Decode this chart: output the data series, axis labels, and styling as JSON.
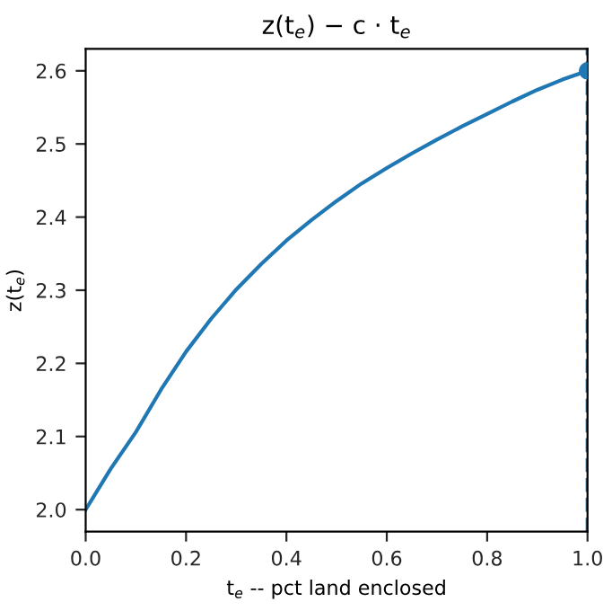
{
  "chart_data": {
    "type": "line",
    "title": "z(t$_{e}$) − c · t$_{e}$",
    "xlabel": "t$_{e}$ -- pct land enclosed",
    "ylabel": "z(t$_{e}$)",
    "series": [
      {
        "color": "#1f77b4",
        "x": [
          0,
          0.05,
          0.1,
          0.15,
          0.2,
          0.25,
          0.3,
          0.35,
          0.4,
          0.45,
          0.5,
          0.55,
          0.6,
          0.65,
          0.7,
          0.75,
          0.8,
          0.85,
          0.9,
          0.95,
          1.0
        ],
        "values": [
          2.0,
          2.056,
          2.106,
          2.164,
          2.216,
          2.261,
          2.301,
          2.336,
          2.368,
          2.396,
          2.422,
          2.446,
          2.467,
          2.487,
          2.506,
          2.524,
          2.541,
          2.558,
          2.574,
          2.588,
          2.6
        ]
      },
      {
        "type": "scatter",
        "color": "#1f77b4",
        "marker": "circle",
        "x": [
          1.0
        ],
        "values": [
          2.6
        ]
      }
    ],
    "ref_lines": [
      {
        "axis": "x",
        "value": 1.0,
        "color": "#1f77b4",
        "line_style": "dashed"
      }
    ],
    "xlim": [
      0,
      1.0
    ],
    "ylim": [
      1.97,
      2.63
    ],
    "xticks": [
      {
        "value": 0,
        "label": "0.0"
      },
      0.2,
      0.4,
      0.6,
      0.8,
      {
        "value": 1,
        "label": "1.0"
      }
    ],
    "yticks": [
      {
        "value": 2,
        "label": "2.0"
      },
      2.1,
      2.2,
      2.3,
      2.4,
      2.5,
      2.6
    ],
    "grid": false,
    "legend": false
  }
}
